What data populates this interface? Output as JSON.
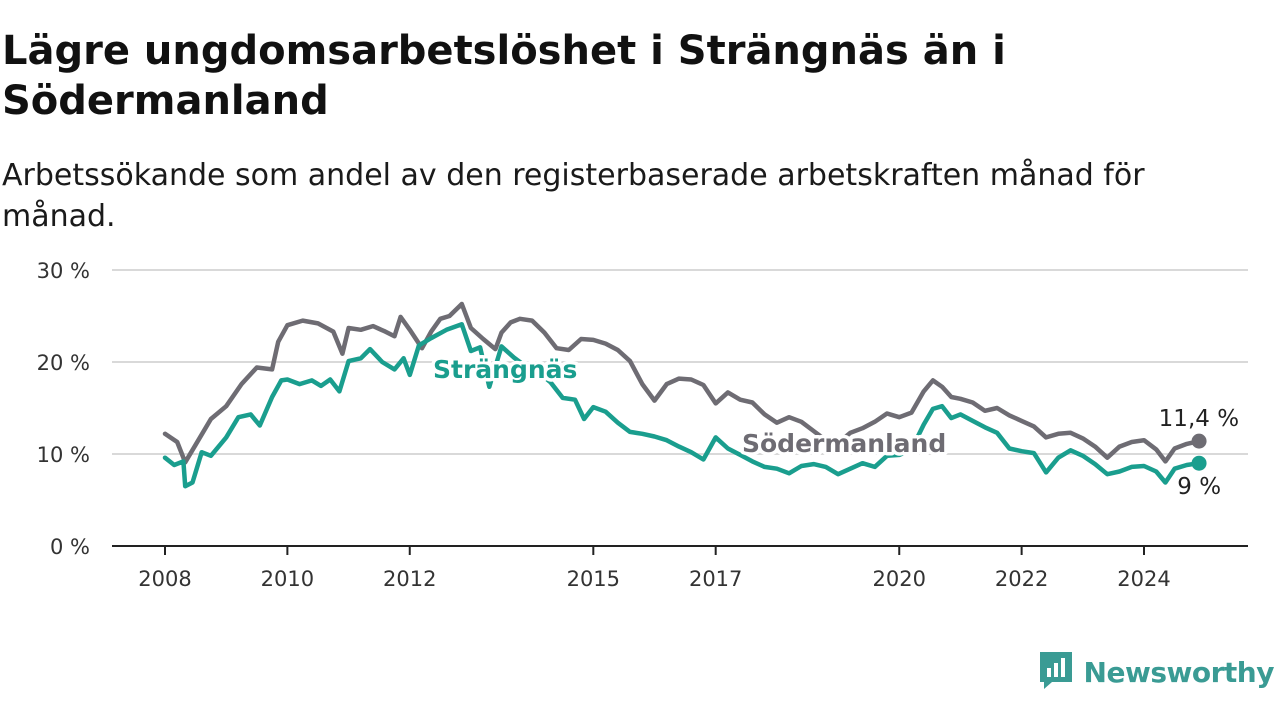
{
  "title": "Lägre ungdomsarbetslöshet i Strängnäs än i Södermanland",
  "subtitle": "Arbetssökande som andel av den registerbaserade arbetskraften månad för månad.",
  "brand": {
    "name": "Newsworthy",
    "icon": "newsworthy-logo-icon",
    "color": "#3a9b94"
  },
  "chart_data": {
    "type": "line",
    "y_ticks": [
      "0 %",
      "10 %",
      "20 %",
      "30 %"
    ],
    "y_tick_values": [
      0,
      10,
      20,
      30
    ],
    "x_ticks": [
      "2008",
      "2010",
      "2012",
      "2015",
      "2017",
      "2020",
      "2022",
      "2024"
    ],
    "x_tick_values": [
      2008,
      2010,
      2012,
      2015,
      2017,
      2020,
      2022,
      2024
    ],
    "xlim": [
      2008,
      2025
    ],
    "ylim": [
      0,
      30
    ],
    "grid": true,
    "series": [
      {
        "name": "Södermanland",
        "color": "#6e6c73",
        "end_label": "11,4 %",
        "points": [
          [
            2008.0,
            12.2
          ],
          [
            2008.2,
            11.3
          ],
          [
            2008.33,
            9.1
          ],
          [
            2008.5,
            11.0
          ],
          [
            2008.75,
            13.8
          ],
          [
            2009.0,
            15.2
          ],
          [
            2009.25,
            17.6
          ],
          [
            2009.5,
            19.4
          ],
          [
            2009.75,
            19.2
          ],
          [
            2009.85,
            22.2
          ],
          [
            2010.0,
            24.0
          ],
          [
            2010.25,
            24.5
          ],
          [
            2010.5,
            24.2
          ],
          [
            2010.75,
            23.3
          ],
          [
            2010.9,
            20.9
          ],
          [
            2011.0,
            23.7
          ],
          [
            2011.2,
            23.5
          ],
          [
            2011.4,
            23.9
          ],
          [
            2011.6,
            23.3
          ],
          [
            2011.75,
            22.8
          ],
          [
            2011.85,
            24.9
          ],
          [
            2012.0,
            23.5
          ],
          [
            2012.2,
            21.5
          ],
          [
            2012.35,
            23.3
          ],
          [
            2012.5,
            24.7
          ],
          [
            2012.65,
            25.0
          ],
          [
            2012.85,
            26.3
          ],
          [
            2013.0,
            23.7
          ],
          [
            2013.2,
            22.5
          ],
          [
            2013.4,
            21.4
          ],
          [
            2013.5,
            23.2
          ],
          [
            2013.65,
            24.3
          ],
          [
            2013.8,
            24.7
          ],
          [
            2014.0,
            24.5
          ],
          [
            2014.2,
            23.2
          ],
          [
            2014.4,
            21.5
          ],
          [
            2014.6,
            21.3
          ],
          [
            2014.8,
            22.5
          ],
          [
            2015.0,
            22.4
          ],
          [
            2015.2,
            22.0
          ],
          [
            2015.4,
            21.3
          ],
          [
            2015.6,
            20.1
          ],
          [
            2015.8,
            17.6
          ],
          [
            2016.0,
            15.8
          ],
          [
            2016.2,
            17.6
          ],
          [
            2016.4,
            18.2
          ],
          [
            2016.6,
            18.1
          ],
          [
            2016.8,
            17.5
          ],
          [
            2017.0,
            15.5
          ],
          [
            2017.2,
            16.7
          ],
          [
            2017.4,
            15.9
          ],
          [
            2017.6,
            15.6
          ],
          [
            2017.8,
            14.3
          ],
          [
            2018.0,
            13.4
          ],
          [
            2018.2,
            14.0
          ],
          [
            2018.4,
            13.5
          ],
          [
            2018.6,
            12.5
          ],
          [
            2018.8,
            11.5
          ],
          [
            2019.0,
            11.2
          ],
          [
            2019.2,
            12.3
          ],
          [
            2019.4,
            12.8
          ],
          [
            2019.6,
            13.5
          ],
          [
            2019.8,
            14.4
          ],
          [
            2020.0,
            14.0
          ],
          [
            2020.2,
            14.5
          ],
          [
            2020.4,
            16.8
          ],
          [
            2020.55,
            18.0
          ],
          [
            2020.7,
            17.3
          ],
          [
            2020.85,
            16.2
          ],
          [
            2021.0,
            16.0
          ],
          [
            2021.2,
            15.6
          ],
          [
            2021.4,
            14.7
          ],
          [
            2021.6,
            15.0
          ],
          [
            2021.8,
            14.2
          ],
          [
            2022.0,
            13.6
          ],
          [
            2022.2,
            13.0
          ],
          [
            2022.4,
            11.8
          ],
          [
            2022.6,
            12.2
          ],
          [
            2022.8,
            12.3
          ],
          [
            2023.0,
            11.7
          ],
          [
            2023.2,
            10.8
          ],
          [
            2023.4,
            9.6
          ],
          [
            2023.6,
            10.8
          ],
          [
            2023.8,
            11.3
          ],
          [
            2024.0,
            11.5
          ],
          [
            2024.2,
            10.5
          ],
          [
            2024.35,
            9.2
          ],
          [
            2024.5,
            10.6
          ],
          [
            2024.7,
            11.1
          ],
          [
            2024.9,
            11.4
          ]
        ]
      },
      {
        "name": "Strängnäs",
        "color": "#1a9e8e",
        "end_label": "9 %",
        "points": [
          [
            2008.0,
            9.6
          ],
          [
            2008.15,
            8.8
          ],
          [
            2008.3,
            9.2
          ],
          [
            2008.33,
            6.5
          ],
          [
            2008.45,
            6.9
          ],
          [
            2008.6,
            10.2
          ],
          [
            2008.75,
            9.8
          ],
          [
            2009.0,
            11.8
          ],
          [
            2009.2,
            14.0
          ],
          [
            2009.4,
            14.3
          ],
          [
            2009.55,
            13.1
          ],
          [
            2009.75,
            16.2
          ],
          [
            2009.9,
            18.0
          ],
          [
            2010.0,
            18.1
          ],
          [
            2010.2,
            17.6
          ],
          [
            2010.4,
            18.0
          ],
          [
            2010.55,
            17.4
          ],
          [
            2010.7,
            18.1
          ],
          [
            2010.85,
            16.8
          ],
          [
            2011.0,
            20.1
          ],
          [
            2011.2,
            20.4
          ],
          [
            2011.35,
            21.4
          ],
          [
            2011.55,
            20.0
          ],
          [
            2011.75,
            19.2
          ],
          [
            2011.9,
            20.4
          ],
          [
            2012.0,
            18.6
          ],
          [
            2012.15,
            21.8
          ],
          [
            2012.35,
            22.6
          ],
          [
            2012.6,
            23.5
          ],
          [
            2012.85,
            24.1
          ],
          [
            2013.0,
            21.2
          ],
          [
            2013.15,
            21.6
          ],
          [
            2013.3,
            17.3
          ],
          [
            2013.5,
            21.7
          ],
          [
            2013.7,
            20.5
          ],
          [
            2013.9,
            19.5
          ],
          [
            2014.1,
            18.9
          ],
          [
            2014.3,
            17.8
          ],
          [
            2014.5,
            16.1
          ],
          [
            2014.7,
            15.9
          ],
          [
            2014.85,
            13.8
          ],
          [
            2015.0,
            15.1
          ],
          [
            2015.2,
            14.6
          ],
          [
            2015.4,
            13.4
          ],
          [
            2015.6,
            12.4
          ],
          [
            2015.8,
            12.2
          ],
          [
            2016.0,
            11.9
          ],
          [
            2016.2,
            11.5
          ],
          [
            2016.4,
            10.8
          ],
          [
            2016.6,
            10.2
          ],
          [
            2016.8,
            9.4
          ],
          [
            2017.0,
            11.8
          ],
          [
            2017.2,
            10.6
          ],
          [
            2017.4,
            9.9
          ],
          [
            2017.6,
            9.2
          ],
          [
            2017.8,
            8.6
          ],
          [
            2018.0,
            8.4
          ],
          [
            2018.2,
            7.9
          ],
          [
            2018.4,
            8.7
          ],
          [
            2018.6,
            8.9
          ],
          [
            2018.8,
            8.6
          ],
          [
            2019.0,
            7.8
          ],
          [
            2019.2,
            8.4
          ],
          [
            2019.4,
            9.0
          ],
          [
            2019.6,
            8.6
          ],
          [
            2019.8,
            9.8
          ],
          [
            2020.0,
            9.9
          ],
          [
            2020.2,
            10.5
          ],
          [
            2020.4,
            13.2
          ],
          [
            2020.55,
            14.9
          ],
          [
            2020.7,
            15.2
          ],
          [
            2020.85,
            13.9
          ],
          [
            2021.0,
            14.3
          ],
          [
            2021.2,
            13.6
          ],
          [
            2021.4,
            12.9
          ],
          [
            2021.6,
            12.3
          ],
          [
            2021.8,
            10.6
          ],
          [
            2022.0,
            10.3
          ],
          [
            2022.2,
            10.1
          ],
          [
            2022.4,
            8.0
          ],
          [
            2022.6,
            9.6
          ],
          [
            2022.8,
            10.4
          ],
          [
            2023.0,
            9.8
          ],
          [
            2023.2,
            8.9
          ],
          [
            2023.4,
            7.8
          ],
          [
            2023.6,
            8.1
          ],
          [
            2023.8,
            8.6
          ],
          [
            2024.0,
            8.7
          ],
          [
            2024.2,
            8.1
          ],
          [
            2024.35,
            6.9
          ],
          [
            2024.5,
            8.4
          ],
          [
            2024.7,
            8.8
          ],
          [
            2024.9,
            9.0
          ]
        ]
      }
    ]
  }
}
